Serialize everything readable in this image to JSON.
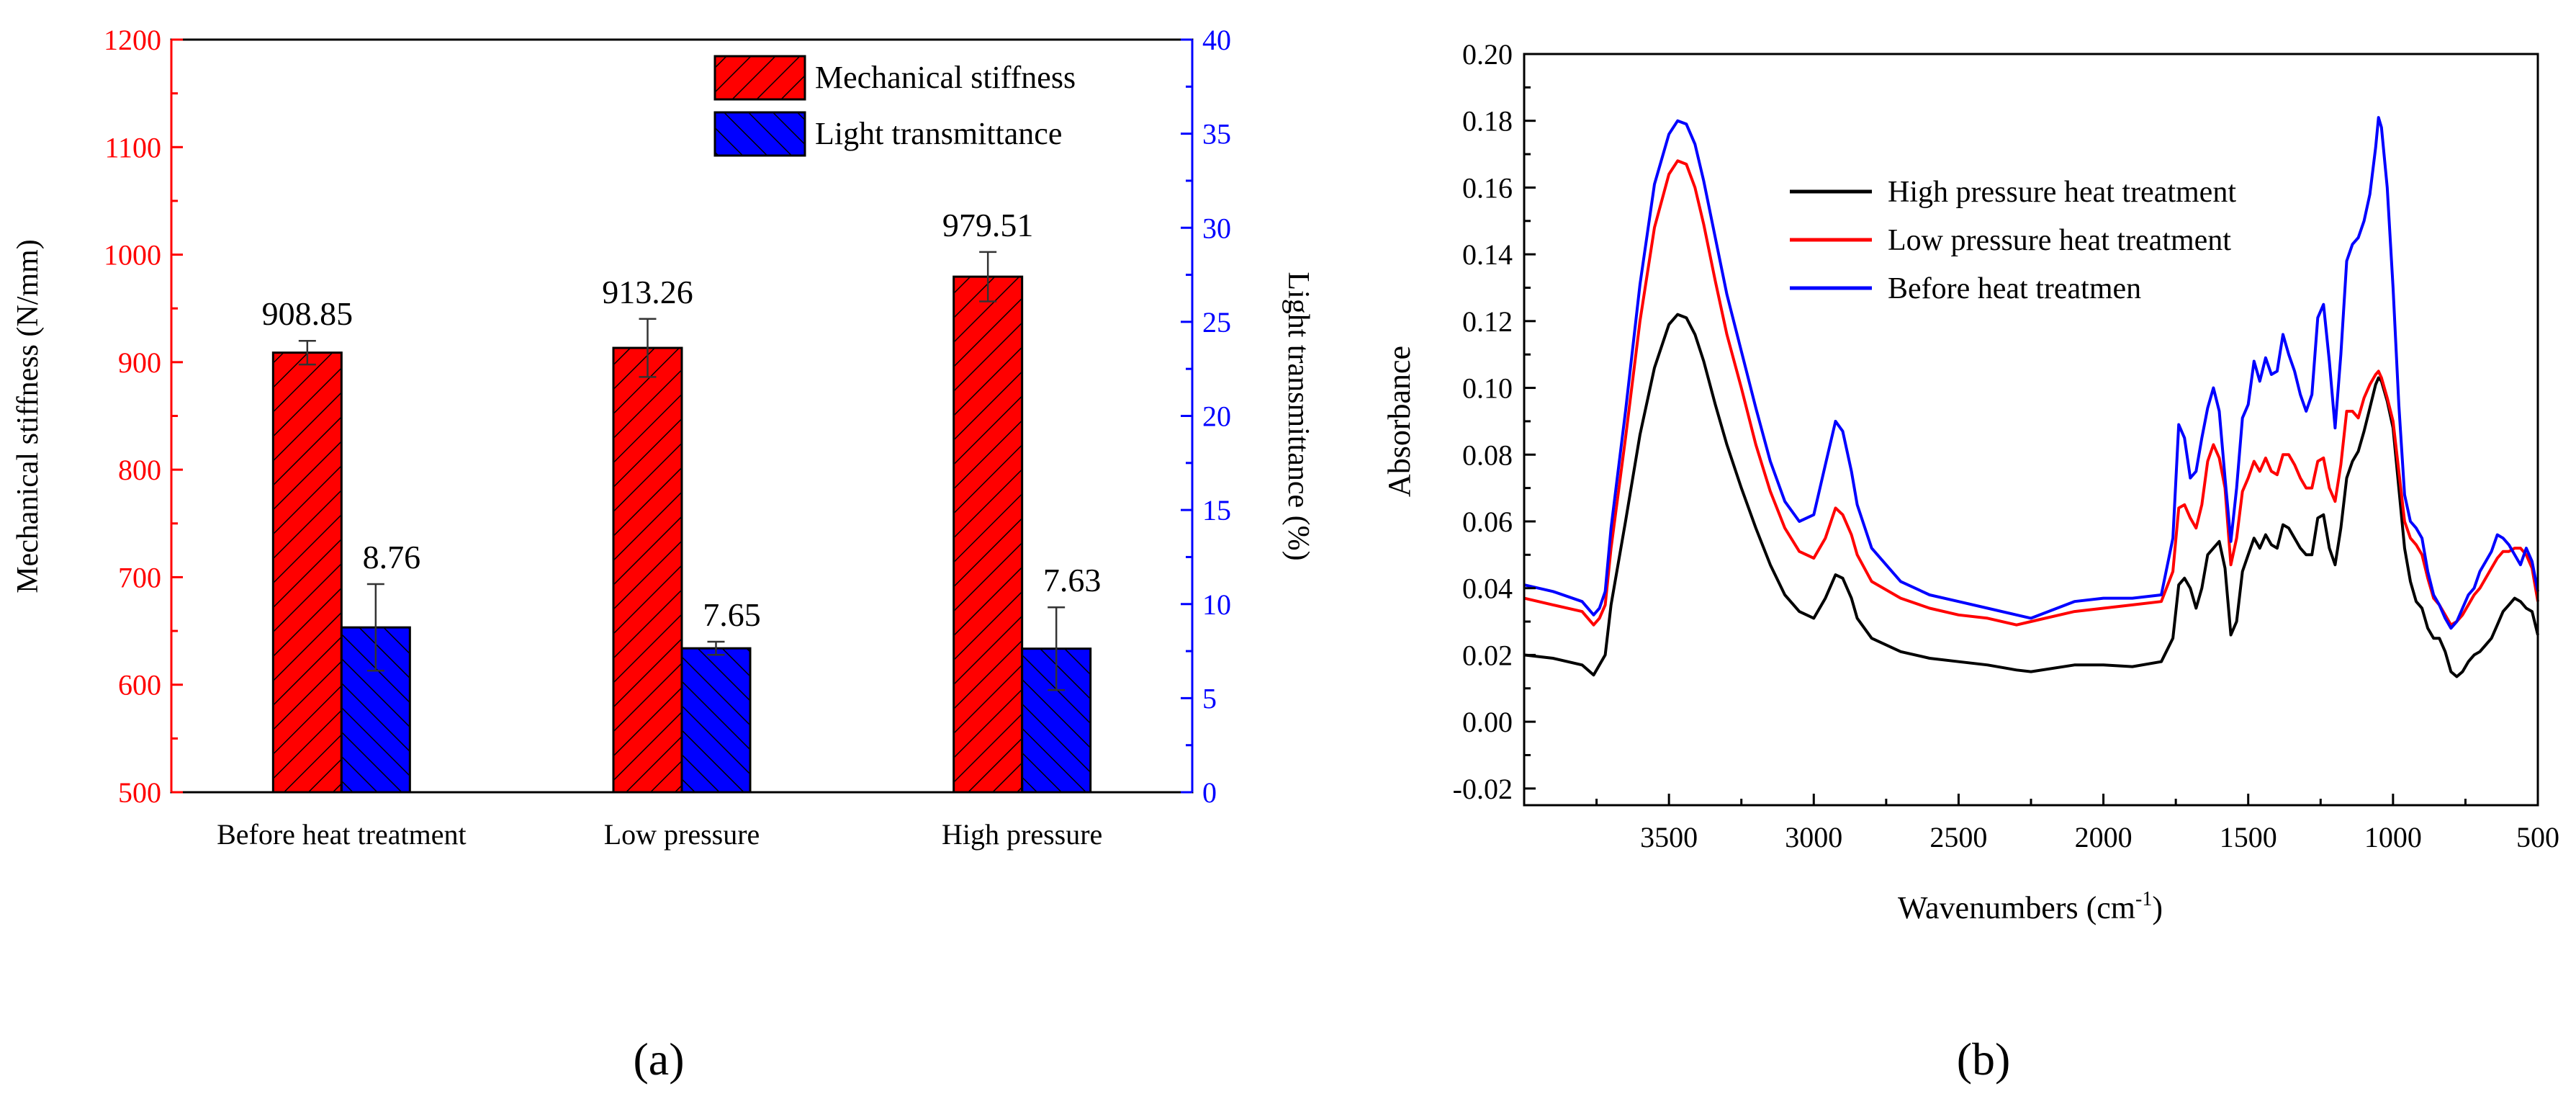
{
  "chart_data": [
    {
      "id": "a",
      "type": "bar",
      "panel_label": "(a)",
      "title": "",
      "xlabel": "",
      "ylabel": "Mechanical stiffness (N/mm)",
      "y2label": "Light transmittance (%)",
      "ylim": [
        500,
        1200
      ],
      "y2lim": [
        0,
        40
      ],
      "categories": [
        "Before heat treatment",
        "Low pressure",
        "High pressure"
      ],
      "series": [
        {
          "name": "Mechanical stiffness",
          "axis": "left",
          "color": "#ff0000",
          "values": [
            908.85,
            913.26,
            979.51
          ],
          "errors": [
            11,
            27,
            23
          ],
          "labels": [
            "908.85",
            "913.26",
            "979.51"
          ]
        },
        {
          "name": "Light transmittance",
          "axis": "right",
          "color": "#0000ff",
          "values": [
            8.76,
            7.65,
            7.63
          ],
          "errors": [
            2.3,
            0.35,
            2.2
          ],
          "labels": [
            "8.76",
            "7.65",
            "7.63"
          ]
        }
      ],
      "yticks": [
        "500",
        "600",
        "700",
        "800",
        "900",
        "1000",
        "1100",
        "1200"
      ],
      "y2ticks": [
        "0",
        "5",
        "10",
        "15",
        "20",
        "25",
        "30",
        "35",
        "40"
      ],
      "legend_position": "top-right",
      "left_axis_color": "#ff0000",
      "right_axis_color": "#0000ff"
    },
    {
      "id": "b",
      "type": "line",
      "panel_label": "(b)",
      "title": "",
      "xlabel": "Wavenumbers (cm",
      "xlabel_sup": "-1",
      "xlabel_close": ")",
      "ylabel": "Absorbance",
      "xlim": [
        4000,
        500
      ],
      "ylim": [
        -0.025,
        0.2
      ],
      "xticks": [
        "3500",
        "3000",
        "2500",
        "2000",
        "1500",
        "1000",
        "500"
      ],
      "yticks": [
        "-0.02",
        "0.00",
        "0.02",
        "0.04",
        "0.06",
        "0.08",
        "0.10",
        "0.12",
        "0.14",
        "0.16",
        "0.18",
        "0.20"
      ],
      "legend_position": "top-center",
      "series": [
        {
          "name": "High pressure heat treatment",
          "color": "#000000",
          "x": [
            4000,
            3900,
            3800,
            3760,
            3740,
            3720,
            3700,
            3650,
            3600,
            3550,
            3500,
            3470,
            3440,
            3410,
            3380,
            3340,
            3300,
            3250,
            3200,
            3150,
            3100,
            3050,
            3000,
            2960,
            2925,
            2900,
            2870,
            2850,
            2800,
            2700,
            2600,
            2500,
            2400,
            2300,
            2250,
            2100,
            2000,
            1900,
            1800,
            1760,
            1740,
            1720,
            1700,
            1680,
            1660,
            1640,
            1620,
            1600,
            1580,
            1560,
            1540,
            1520,
            1500,
            1480,
            1460,
            1440,
            1420,
            1400,
            1380,
            1360,
            1340,
            1320,
            1300,
            1280,
            1260,
            1240,
            1220,
            1200,
            1180,
            1160,
            1140,
            1120,
            1100,
            1080,
            1060,
            1050,
            1040,
            1020,
            1000,
            980,
            960,
            940,
            920,
            900,
            880,
            860,
            840,
            820,
            800,
            780,
            760,
            740,
            720,
            700,
            680,
            660,
            640,
            620,
            600,
            580,
            560,
            540,
            520,
            500
          ],
          "y": [
            0.02,
            0.019,
            0.017,
            0.014,
            0.017,
            0.02,
            0.035,
            0.06,
            0.086,
            0.106,
            0.119,
            0.122,
            0.121,
            0.116,
            0.108,
            0.095,
            0.083,
            0.07,
            0.058,
            0.047,
            0.038,
            0.033,
            0.031,
            0.037,
            0.044,
            0.043,
            0.037,
            0.031,
            0.025,
            0.021,
            0.019,
            0.018,
            0.017,
            0.0155,
            0.015,
            0.017,
            0.017,
            0.0165,
            0.018,
            0.025,
            0.041,
            0.043,
            0.04,
            0.034,
            0.04,
            0.05,
            0.052,
            0.054,
            0.046,
            0.026,
            0.03,
            0.045,
            0.05,
            0.055,
            0.052,
            0.056,
            0.053,
            0.052,
            0.059,
            0.058,
            0.055,
            0.052,
            0.05,
            0.05,
            0.061,
            0.062,
            0.052,
            0.047,
            0.058,
            0.073,
            0.078,
            0.081,
            0.087,
            0.094,
            0.101,
            0.103,
            0.102,
            0.096,
            0.088,
            0.07,
            0.052,
            0.042,
            0.036,
            0.034,
            0.028,
            0.025,
            0.025,
            0.021,
            0.015,
            0.0135,
            0.015,
            0.018,
            0.02,
            0.021,
            0.023,
            0.025,
            0.029,
            0.033,
            0.035,
            0.037,
            0.036,
            0.034,
            0.033,
            0.026
          ]
        },
        {
          "name": "Low pressure heat treatment",
          "color": "#ff0000",
          "x": [
            4000,
            3900,
            3800,
            3760,
            3740,
            3720,
            3700,
            3650,
            3600,
            3550,
            3500,
            3470,
            3440,
            3410,
            3380,
            3340,
            3300,
            3250,
            3200,
            3150,
            3100,
            3050,
            3000,
            2960,
            2925,
            2900,
            2870,
            2850,
            2800,
            2700,
            2600,
            2500,
            2400,
            2300,
            2250,
            2100,
            2000,
            1900,
            1800,
            1760,
            1740,
            1720,
            1700,
            1680,
            1660,
            1640,
            1620,
            1600,
            1580,
            1560,
            1540,
            1520,
            1500,
            1480,
            1460,
            1440,
            1420,
            1400,
            1380,
            1360,
            1340,
            1320,
            1300,
            1280,
            1260,
            1240,
            1220,
            1200,
            1180,
            1160,
            1140,
            1120,
            1100,
            1080,
            1060,
            1050,
            1040,
            1020,
            1000,
            980,
            960,
            940,
            920,
            900,
            880,
            860,
            840,
            820,
            800,
            780,
            760,
            740,
            720,
            700,
            680,
            660,
            640,
            620,
            600,
            580,
            560,
            540,
            520,
            500
          ],
          "y": [
            0.037,
            0.035,
            0.033,
            0.029,
            0.031,
            0.035,
            0.052,
            0.085,
            0.12,
            0.148,
            0.164,
            0.168,
            0.167,
            0.16,
            0.149,
            0.132,
            0.116,
            0.1,
            0.083,
            0.069,
            0.058,
            0.051,
            0.049,
            0.055,
            0.064,
            0.062,
            0.056,
            0.05,
            0.042,
            0.037,
            0.034,
            0.032,
            0.031,
            0.029,
            0.03,
            0.033,
            0.034,
            0.035,
            0.036,
            0.045,
            0.064,
            0.065,
            0.061,
            0.058,
            0.065,
            0.078,
            0.083,
            0.079,
            0.07,
            0.047,
            0.055,
            0.069,
            0.073,
            0.078,
            0.075,
            0.079,
            0.075,
            0.074,
            0.08,
            0.08,
            0.077,
            0.073,
            0.07,
            0.07,
            0.078,
            0.079,
            0.07,
            0.066,
            0.077,
            0.093,
            0.093,
            0.091,
            0.097,
            0.101,
            0.104,
            0.105,
            0.103,
            0.097,
            0.09,
            0.075,
            0.06,
            0.055,
            0.053,
            0.05,
            0.043,
            0.037,
            0.035,
            0.032,
            0.029,
            0.03,
            0.032,
            0.035,
            0.038,
            0.04,
            0.043,
            0.046,
            0.049,
            0.051,
            0.051,
            0.052,
            0.052,
            0.05,
            0.046,
            0.036
          ]
        },
        {
          "name": "Before heat treatmen",
          "color": "#0000ff",
          "x": [
            4000,
            3900,
            3800,
            3760,
            3740,
            3720,
            3700,
            3650,
            3600,
            3550,
            3500,
            3470,
            3440,
            3410,
            3380,
            3340,
            3300,
            3250,
            3200,
            3150,
            3100,
            3050,
            3000,
            2960,
            2925,
            2900,
            2870,
            2850,
            2800,
            2700,
            2600,
            2500,
            2400,
            2300,
            2250,
            2100,
            2000,
            1900,
            1800,
            1760,
            1740,
            1720,
            1700,
            1680,
            1660,
            1640,
            1620,
            1600,
            1580,
            1560,
            1540,
            1520,
            1500,
            1480,
            1460,
            1440,
            1420,
            1400,
            1380,
            1360,
            1340,
            1320,
            1300,
            1280,
            1260,
            1240,
            1220,
            1200,
            1180,
            1160,
            1140,
            1120,
            1100,
            1080,
            1060,
            1050,
            1040,
            1020,
            1000,
            980,
            960,
            940,
            920,
            900,
            880,
            860,
            840,
            820,
            800,
            780,
            760,
            740,
            720,
            700,
            680,
            660,
            640,
            620,
            600,
            580,
            560,
            540,
            520,
            500
          ],
          "y": [
            0.041,
            0.039,
            0.036,
            0.032,
            0.034,
            0.039,
            0.058,
            0.093,
            0.131,
            0.161,
            0.176,
            0.18,
            0.179,
            0.173,
            0.162,
            0.145,
            0.128,
            0.111,
            0.094,
            0.078,
            0.066,
            0.06,
            0.062,
            0.077,
            0.09,
            0.087,
            0.075,
            0.065,
            0.052,
            0.042,
            0.038,
            0.036,
            0.034,
            0.032,
            0.031,
            0.036,
            0.037,
            0.037,
            0.038,
            0.055,
            0.089,
            0.085,
            0.073,
            0.075,
            0.085,
            0.094,
            0.1,
            0.093,
            0.073,
            0.054,
            0.07,
            0.091,
            0.095,
            0.108,
            0.102,
            0.109,
            0.104,
            0.105,
            0.116,
            0.11,
            0.105,
            0.098,
            0.093,
            0.098,
            0.121,
            0.125,
            0.108,
            0.088,
            0.11,
            0.138,
            0.143,
            0.145,
            0.15,
            0.158,
            0.172,
            0.181,
            0.178,
            0.16,
            0.13,
            0.095,
            0.068,
            0.06,
            0.058,
            0.055,
            0.045,
            0.038,
            0.035,
            0.031,
            0.028,
            0.03,
            0.034,
            0.038,
            0.04,
            0.045,
            0.048,
            0.051,
            0.056,
            0.055,
            0.053,
            0.05,
            0.047,
            0.052,
            0.048,
            0.039
          ]
        }
      ]
    }
  ]
}
